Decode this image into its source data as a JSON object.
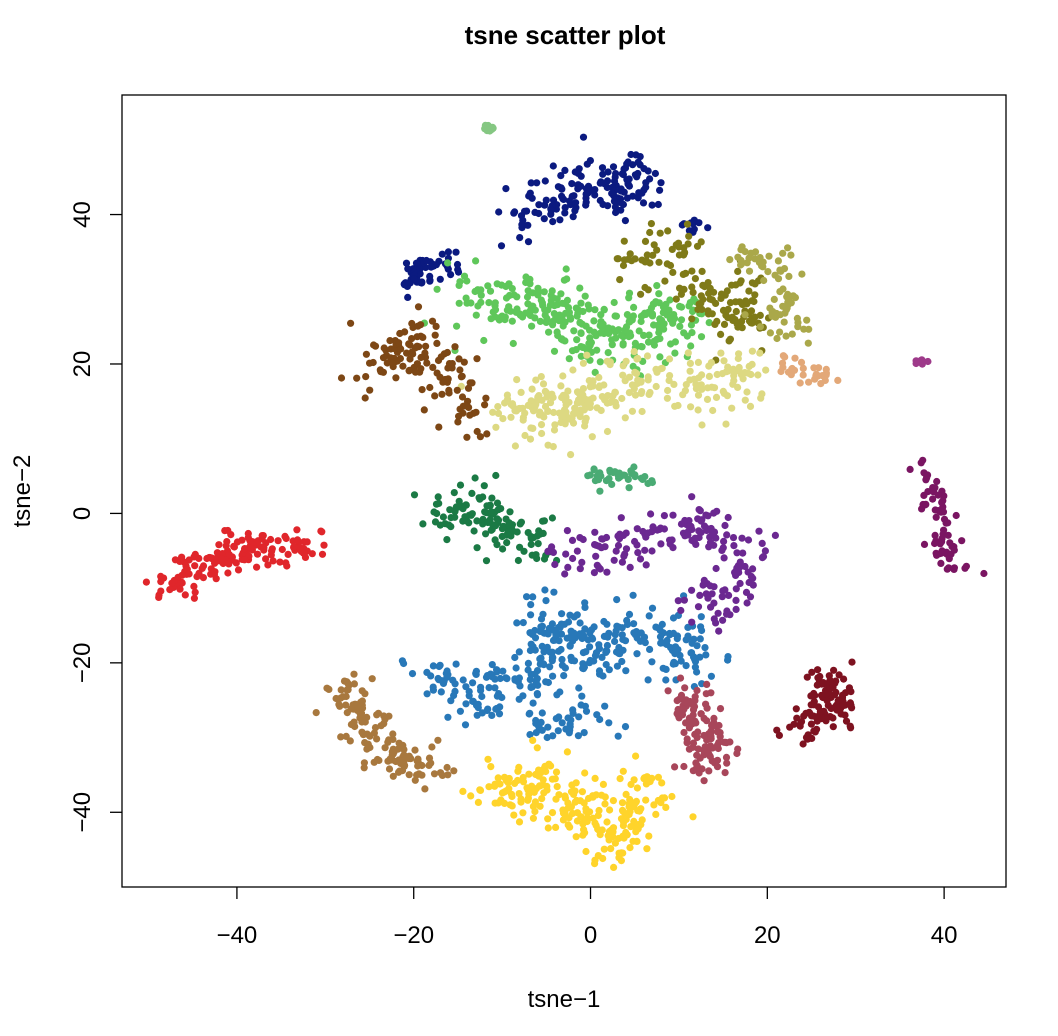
{
  "chart_data": {
    "type": "scatter",
    "title": "tsne scatter plot",
    "xlabel": "tsne−1",
    "ylabel": "tsne−2",
    "xlim": [
      -53,
      47
    ],
    "ylim": [
      -50,
      56
    ],
    "x_ticks": [
      {
        "value": -40,
        "label": "−40"
      },
      {
        "value": -20,
        "label": "−20"
      },
      {
        "value": 0,
        "label": "0"
      },
      {
        "value": 20,
        "label": "20"
      },
      {
        "value": 40,
        "label": "40"
      }
    ],
    "y_ticks": [
      {
        "value": -40,
        "label": "−40"
      },
      {
        "value": -20,
        "label": "−20"
      },
      {
        "value": 0,
        "label": "0"
      },
      {
        "value": 20,
        "label": "20"
      },
      {
        "value": 40,
        "label": "40"
      }
    ],
    "grid": false,
    "legend": "none",
    "clusters": [
      {
        "color": "#0b1a80",
        "polyline": [
          [
            -21,
            30
          ],
          [
            -19,
            33
          ],
          [
            -17,
            33
          ],
          [
            -16,
            34
          ]
        ],
        "spread": 1.4,
        "count": 55
      },
      {
        "color": "#0b1a80",
        "polyline": [
          [
            -8,
            40
          ],
          [
            -4,
            42
          ],
          [
            0,
            44
          ],
          [
            4,
            42
          ],
          [
            6,
            46
          ]
        ],
        "spread": 2.3,
        "count": 150
      },
      {
        "color": "#0b1a80",
        "polyline": [
          [
            11,
            38
          ],
          [
            12,
            39
          ]
        ],
        "spread": 0.8,
        "count": 10
      },
      {
        "color": "#2878b8",
        "polyline": [
          [
            -18,
            -22
          ],
          [
            -12,
            -24
          ],
          [
            -6,
            -22
          ],
          [
            -4,
            -14
          ],
          [
            0,
            -18
          ],
          [
            6,
            -16
          ],
          [
            10,
            -18
          ],
          [
            12,
            -20
          ]
        ],
        "spread": 2.7,
        "count": 330
      },
      {
        "color": "#2878b8",
        "polyline": [
          [
            -8,
            -28
          ],
          [
            -2,
            -28
          ],
          [
            2,
            -26
          ]
        ],
        "spread": 1.6,
        "count": 40
      },
      {
        "color": "#5fc75a",
        "polyline": [
          [
            -14,
            30
          ],
          [
            -10,
            27
          ],
          [
            -4,
            28
          ],
          [
            -2,
            24
          ],
          [
            2,
            22
          ],
          [
            4,
            26
          ],
          [
            8,
            24
          ],
          [
            10,
            28
          ]
        ],
        "spread": 2.8,
        "count": 290
      },
      {
        "color": "#7f7a18",
        "polyline": [
          [
            4,
            34
          ],
          [
            8,
            36
          ],
          [
            10,
            32
          ],
          [
            14,
            28
          ],
          [
            18,
            30
          ],
          [
            16,
            24
          ]
        ],
        "spread": 2.3,
        "count": 140
      },
      {
        "color": "#aaa84a",
        "polyline": [
          [
            17,
            34
          ],
          [
            20,
            34
          ],
          [
            22,
            30
          ],
          [
            21,
            26
          ],
          [
            24,
            24
          ]
        ],
        "spread": 1.8,
        "count": 70
      },
      {
        "color": "#ddd982",
        "polyline": [
          [
            -10,
            14
          ],
          [
            -6,
            14
          ],
          [
            -4,
            12
          ],
          [
            0,
            16
          ],
          [
            4,
            17
          ],
          [
            8,
            18
          ],
          [
            12,
            16
          ],
          [
            16,
            18
          ],
          [
            18,
            20
          ]
        ],
        "spread": 2.5,
        "count": 260
      },
      {
        "color": "#e3a878",
        "polyline": [
          [
            22,
            21
          ],
          [
            24,
            19
          ],
          [
            27,
            18
          ]
        ],
        "spread": 1.1,
        "count": 30
      },
      {
        "color": "#7d4715",
        "polyline": [
          [
            -25,
            18
          ],
          [
            -22,
            22
          ],
          [
            -19,
            24
          ],
          [
            -17,
            20
          ],
          [
            -15,
            16
          ],
          [
            -13,
            12
          ]
        ],
        "spread": 2.1,
        "count": 130
      },
      {
        "color": "#4aab74",
        "polyline": [
          [
            0,
            5
          ],
          [
            3,
            5
          ],
          [
            6,
            5
          ]
        ],
        "spread": 1.0,
        "count": 40
      },
      {
        "color": "#1b7a45",
        "polyline": [
          [
            -17,
            0
          ],
          [
            -13,
            1
          ],
          [
            -11,
            -1
          ],
          [
            -9,
            -3
          ],
          [
            -5,
            -4
          ]
        ],
        "spread": 2.0,
        "count": 120
      },
      {
        "color": "#6b2891",
        "polyline": [
          [
            -3,
            -7
          ],
          [
            0,
            -6
          ],
          [
            4,
            -4
          ],
          [
            8,
            -3
          ],
          [
            12,
            -1
          ],
          [
            16,
            -4
          ],
          [
            18,
            -8
          ],
          [
            14,
            -12
          ],
          [
            11,
            -12
          ]
        ],
        "spread": 2.1,
        "count": 180
      },
      {
        "color": "#7a1562",
        "polyline": [
          [
            37,
            6
          ],
          [
            39,
            2
          ],
          [
            40,
            -3
          ],
          [
            40,
            -6
          ],
          [
            42,
            -8
          ]
        ],
        "spread": 1.2,
        "count": 70
      },
      {
        "color": "#e0262b",
        "polyline": [
          [
            -48,
            -11
          ],
          [
            -46,
            -8
          ],
          [
            -43,
            -7
          ],
          [
            -40,
            -4
          ],
          [
            -37,
            -5
          ],
          [
            -34,
            -5
          ],
          [
            -31,
            -3
          ]
        ],
        "spread": 1.5,
        "count": 150
      },
      {
        "color": "#a8783e",
        "polyline": [
          [
            -28,
            -23
          ],
          [
            -26,
            -27
          ],
          [
            -24,
            -31
          ],
          [
            -21,
            -33
          ],
          [
            -19,
            -34
          ],
          [
            -18,
            -36
          ]
        ],
        "spread": 1.8,
        "count": 130
      },
      {
        "color": "#ffd42b",
        "polyline": [
          [
            -12,
            -37
          ],
          [
            -7,
            -37
          ],
          [
            -4,
            -35
          ],
          [
            -2,
            -40
          ],
          [
            1,
            -41
          ],
          [
            3,
            -44
          ],
          [
            5,
            -38
          ],
          [
            8,
            -36
          ]
        ],
        "spread": 2.4,
        "count": 240
      },
      {
        "color": "#a8465a",
        "polyline": [
          [
            10,
            -24
          ],
          [
            12,
            -28
          ],
          [
            14,
            -30
          ],
          [
            13,
            -34
          ]
        ],
        "spread": 1.7,
        "count": 110
      },
      {
        "color": "#7e1220",
        "polyline": [
          [
            24,
            -30
          ],
          [
            26,
            -25
          ],
          [
            27,
            -22
          ],
          [
            28,
            -28
          ]
        ],
        "spread": 1.4,
        "count": 110
      },
      {
        "color": "#85c782",
        "polyline": [
          [
            -12,
            51.5
          ],
          [
            -11,
            51.5
          ]
        ],
        "spread": 0.25,
        "count": 10
      },
      {
        "color": "#9e3a8a",
        "polyline": [
          [
            37,
            20.3
          ],
          [
            38,
            20.5
          ]
        ],
        "spread": 0.25,
        "count": 8
      }
    ]
  }
}
